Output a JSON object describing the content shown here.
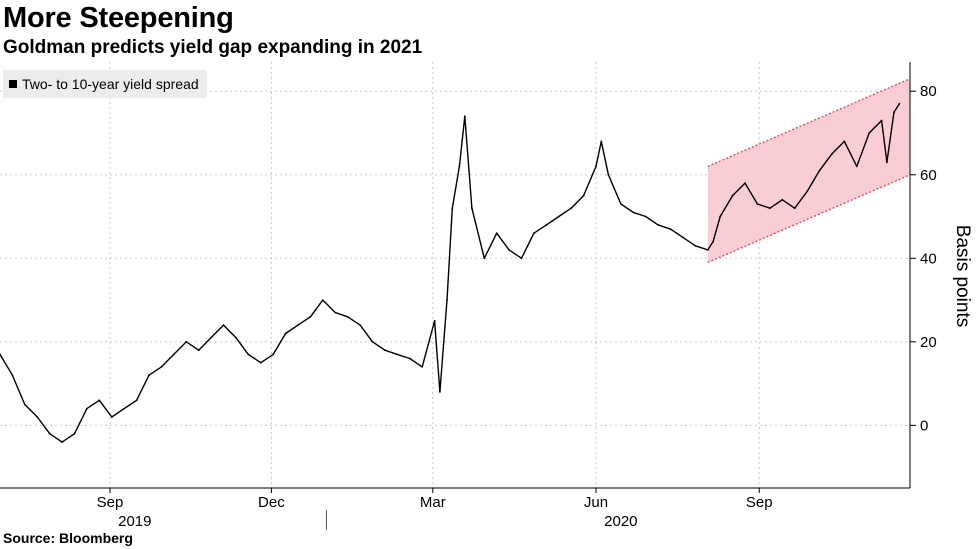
{
  "title": "More Steepening",
  "subtitle": "Goldman predicts yield gap expanding in 2021",
  "source": "Source: Bloomberg",
  "legend_label": "Two- to 10-year yield spread",
  "colors": {
    "series": "#000000",
    "channel_fill": "#f7c6cc",
    "channel_line": "#e0344b",
    "grid": "#c8c8c8"
  },
  "chart_data": {
    "type": "line",
    "title": "More Steepening",
    "subtitle": "Goldman predicts yield gap expanding in 2021",
    "ylabel": "Basis points",
    "ylim": [
      -15,
      87
    ],
    "yticks": [
      0,
      20,
      40,
      60,
      80
    ],
    "xlim": [
      "2019-07-01",
      "2020-11-25"
    ],
    "x_ticks": [
      {
        "date": "2019-09-01",
        "label": "Sep"
      },
      {
        "date": "2019-12-01",
        "label": "Dec"
      },
      {
        "date": "2020-03-01",
        "label": "Mar"
      },
      {
        "date": "2020-06-01",
        "label": "Jun"
      },
      {
        "date": "2020-09-01",
        "label": "Sep"
      }
    ],
    "year_labels": [
      {
        "date": "2019-09-15",
        "label": "2019"
      },
      {
        "date": "2020-06-15",
        "label": "2020"
      }
    ],
    "year_divider": "2020-01-01",
    "grid": true,
    "legend_position": "top-left",
    "series": [
      {
        "name": "Two- to 10-year yield spread",
        "points": [
          [
            "2019-07-01",
            17
          ],
          [
            "2019-07-08",
            12
          ],
          [
            "2019-07-15",
            5
          ],
          [
            "2019-07-22",
            2
          ],
          [
            "2019-07-29",
            -2
          ],
          [
            "2019-08-05",
            -4
          ],
          [
            "2019-08-12",
            -2
          ],
          [
            "2019-08-19",
            4
          ],
          [
            "2019-08-26",
            6
          ],
          [
            "2019-09-02",
            2
          ],
          [
            "2019-09-09",
            4
          ],
          [
            "2019-09-16",
            6
          ],
          [
            "2019-09-23",
            12
          ],
          [
            "2019-09-30",
            14
          ],
          [
            "2019-10-07",
            17
          ],
          [
            "2019-10-14",
            20
          ],
          [
            "2019-10-21",
            18
          ],
          [
            "2019-10-28",
            21
          ],
          [
            "2019-11-04",
            24
          ],
          [
            "2019-11-11",
            21
          ],
          [
            "2019-11-18",
            17
          ],
          [
            "2019-11-25",
            15
          ],
          [
            "2019-12-02",
            17
          ],
          [
            "2019-12-09",
            22
          ],
          [
            "2019-12-16",
            24
          ],
          [
            "2019-12-23",
            26
          ],
          [
            "2019-12-30",
            30
          ],
          [
            "2020-01-06",
            27
          ],
          [
            "2020-01-13",
            26
          ],
          [
            "2020-01-20",
            24
          ],
          [
            "2020-01-27",
            20
          ],
          [
            "2020-02-03",
            18
          ],
          [
            "2020-02-10",
            17
          ],
          [
            "2020-02-17",
            16
          ],
          [
            "2020-02-24",
            14
          ],
          [
            "2020-03-02",
            25
          ],
          [
            "2020-03-05",
            8
          ],
          [
            "2020-03-09",
            30
          ],
          [
            "2020-03-12",
            52
          ],
          [
            "2020-03-16",
            62
          ],
          [
            "2020-03-19",
            74
          ],
          [
            "2020-03-23",
            52
          ],
          [
            "2020-03-30",
            40
          ],
          [
            "2020-04-06",
            46
          ],
          [
            "2020-04-13",
            42
          ],
          [
            "2020-04-20",
            40
          ],
          [
            "2020-04-27",
            46
          ],
          [
            "2020-05-04",
            48
          ],
          [
            "2020-05-11",
            50
          ],
          [
            "2020-05-18",
            52
          ],
          [
            "2020-05-25",
            55
          ],
          [
            "2020-06-01",
            62
          ],
          [
            "2020-06-04",
            68
          ],
          [
            "2020-06-08",
            60
          ],
          [
            "2020-06-15",
            53
          ],
          [
            "2020-06-22",
            51
          ],
          [
            "2020-06-29",
            50
          ],
          [
            "2020-07-06",
            48
          ],
          [
            "2020-07-13",
            47
          ],
          [
            "2020-07-20",
            45
          ],
          [
            "2020-07-27",
            43
          ],
          [
            "2020-08-03",
            42
          ],
          [
            "2020-08-06",
            44
          ],
          [
            "2020-08-10",
            50
          ],
          [
            "2020-08-17",
            55
          ],
          [
            "2020-08-24",
            58
          ],
          [
            "2020-08-31",
            53
          ],
          [
            "2020-09-07",
            52
          ],
          [
            "2020-09-14",
            54
          ],
          [
            "2020-09-21",
            52
          ],
          [
            "2020-09-28",
            56
          ],
          [
            "2020-10-05",
            61
          ],
          [
            "2020-10-12",
            65
          ],
          [
            "2020-10-19",
            68
          ],
          [
            "2020-10-26",
            62
          ],
          [
            "2020-11-02",
            70
          ],
          [
            "2020-11-09",
            73
          ],
          [
            "2020-11-12",
            63
          ],
          [
            "2020-11-16",
            75
          ],
          [
            "2020-11-19",
            77
          ]
        ]
      }
    ],
    "channel": {
      "upper": [
        [
          "2020-08-03",
          62
        ],
        [
          "2020-11-25",
          83
        ]
      ],
      "lower": [
        [
          "2020-08-03",
          39
        ],
        [
          "2020-11-25",
          60
        ]
      ]
    }
  }
}
